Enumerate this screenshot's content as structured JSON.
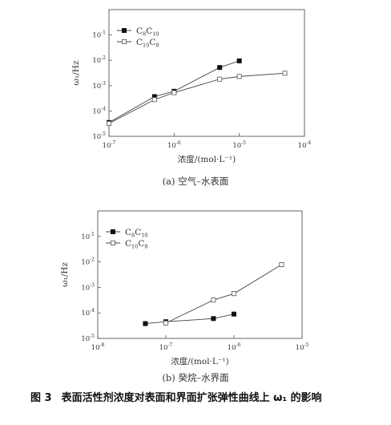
{
  "figure": {
    "number": "图 3",
    "caption": "表面活性剂浓度对表面和界面扩张弹性曲线上 ω₁ 的影响"
  },
  "chart_data": [
    {
      "type": "line",
      "caption": "(a) 空气–水表面",
      "xlabel": "浓度/(mol·L⁻¹)",
      "ylabel": "ω₁/Hz",
      "xscale": "log",
      "yscale": "log",
      "xlim": [
        1e-07,
        0.0001
      ],
      "ylim": [
        1e-05,
        1
      ],
      "xticks": [
        {
          "v": 1e-07,
          "m": "10",
          "e": "-7"
        },
        {
          "v": 1e-06,
          "m": "10",
          "e": "-6"
        },
        {
          "v": 1e-05,
          "m": "10",
          "e": "-5"
        },
        {
          "v": 0.0001,
          "m": "10",
          "e": "-4"
        }
      ],
      "yticks": [
        {
          "v": 1e-05,
          "m": "10",
          "e": "-5"
        },
        {
          "v": 0.0001,
          "m": "10",
          "e": "-4"
        },
        {
          "v": 0.001,
          "m": "10",
          "e": "-3"
        },
        {
          "v": 0.01,
          "m": "10",
          "e": "-2"
        },
        {
          "v": 0.1,
          "m": "10",
          "e": "-1"
        }
      ],
      "legend_position": "top-left",
      "series": [
        {
          "name": "C8C10",
          "label_main": "C",
          "label_sub1": "8",
          "label_mid": "C",
          "label_sub2": "10",
          "marker": "filled-square",
          "x": [
            1e-07,
            5e-07,
            1e-06,
            5e-06,
            1e-05
          ],
          "y": [
            3.5e-05,
            0.00037,
            0.0006,
            0.0052,
            0.0095
          ]
        },
        {
          "name": "C10C8",
          "label_main": "C",
          "label_sub1": "10",
          "label_mid": "C",
          "label_sub2": "8",
          "marker": "open-square",
          "x": [
            1e-07,
            5e-07,
            1e-06,
            5e-06,
            1e-05,
            5e-05
          ],
          "y": [
            3.2e-05,
            0.00028,
            0.00053,
            0.0018,
            0.0023,
            0.0031
          ]
        }
      ]
    },
    {
      "type": "line",
      "caption": "(b) 癸烷–水界面",
      "xlabel": "浓度/(mol·L⁻¹)",
      "ylabel": "ω₁/Hz",
      "xscale": "log",
      "yscale": "log",
      "xlim": [
        1e-08,
        1e-05
      ],
      "ylim": [
        1e-05,
        1
      ],
      "xticks": [
        {
          "v": 1e-08,
          "m": "10",
          "e": "-8"
        },
        {
          "v": 1e-07,
          "m": "10",
          "e": "-7"
        },
        {
          "v": 1e-06,
          "m": "10",
          "e": "-6"
        },
        {
          "v": 1e-05,
          "m": "10",
          "e": "-5"
        }
      ],
      "yticks": [
        {
          "v": 1e-05,
          "m": "10",
          "e": "-5"
        },
        {
          "v": 0.0001,
          "m": "10",
          "e": "-4"
        },
        {
          "v": 0.001,
          "m": "10",
          "e": "-3"
        },
        {
          "v": 0.01,
          "m": "10",
          "e": "-2"
        },
        {
          "v": 0.1,
          "m": "10",
          "e": "-1"
        }
      ],
      "legend_position": "top-left",
      "series": [
        {
          "name": "C8C10",
          "label_main": "C",
          "label_sub1": "8",
          "label_mid": "C",
          "label_sub2": "10",
          "marker": "filled-square",
          "x": [
            5e-08,
            1e-07,
            5e-07,
            1e-06
          ],
          "y": [
            3.8e-05,
            4.5e-05,
            6e-05,
            9e-05
          ]
        },
        {
          "name": "C10C8",
          "label_main": "C",
          "label_sub1": "10",
          "label_mid": "C",
          "label_sub2": "8",
          "marker": "open-square",
          "x": [
            1e-07,
            5e-07,
            1e-06,
            5e-06
          ],
          "y": [
            4e-05,
            0.00032,
            0.00057,
            0.0078
          ]
        }
      ]
    }
  ]
}
